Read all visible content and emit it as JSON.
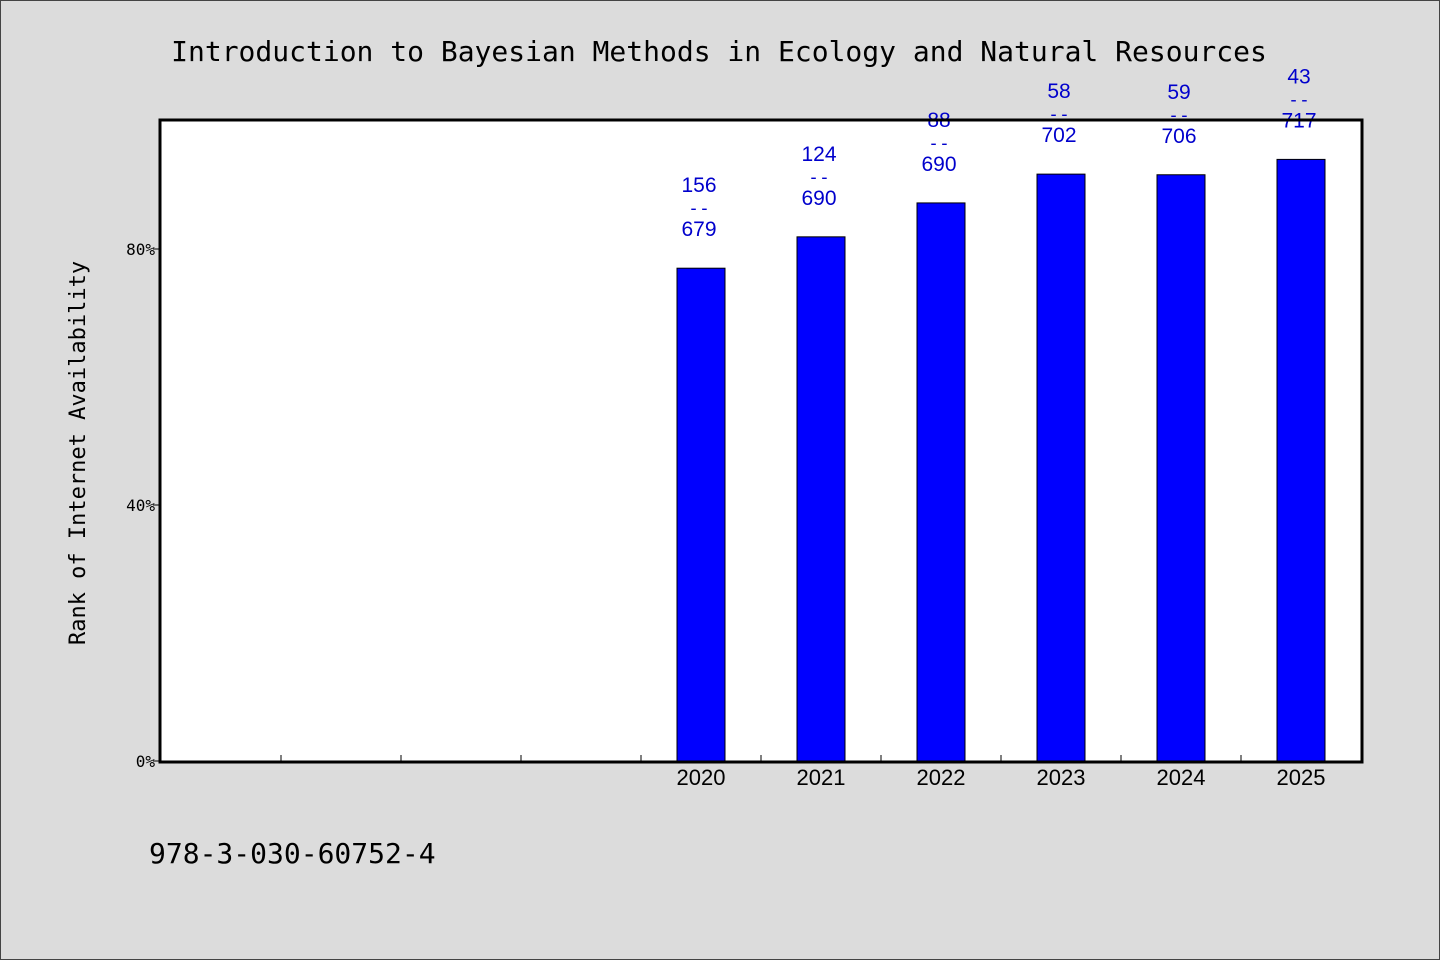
{
  "chart_data": {
    "type": "bar",
    "title": "Introduction to Bayesian Methods in Ecology and Natural Resources",
    "ylabel": "Rank of Internet Availability",
    "xlabel": "",
    "ylim": [
      0,
      100
    ],
    "y_ticks": [
      0,
      40,
      80
    ],
    "y_tick_labels": [
      "0%",
      "40%",
      "80%"
    ],
    "x_slots": 10,
    "categories": [
      "2020",
      "2021",
      "2022",
      "2023",
      "2024",
      "2025"
    ],
    "category_slot_start": 4,
    "values": [
      77.0,
      81.9,
      87.2,
      91.7,
      91.6,
      94.0
    ],
    "label_top": [
      "156",
      "124",
      "88",
      "58",
      "59",
      "43"
    ],
    "label_bottom": [
      "679",
      "690",
      "690",
      "702",
      "706",
      "717"
    ],
    "label_separator": "--",
    "bar_color": "#0000ff",
    "label_color": "#0000cc",
    "grid": false,
    "legend": "none"
  },
  "footer": {
    "isbn": "978-3-030-60752-4"
  }
}
